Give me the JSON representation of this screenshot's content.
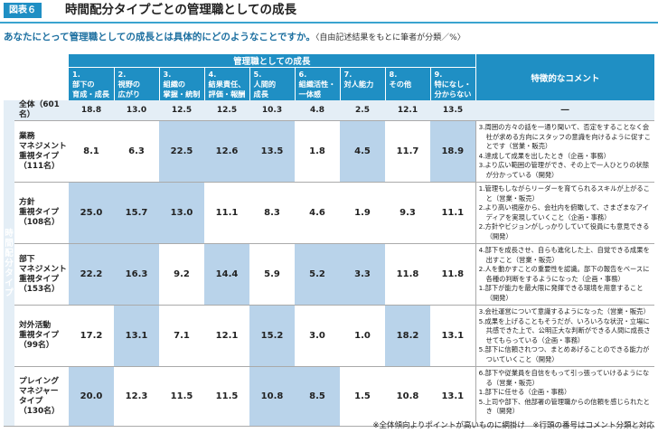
{
  "figure_label": "図表６",
  "title": "時間配分タイプごとの管理職としての成長",
  "question": "あなたにとって管理職としての成長とは具体的にどのようなことですか。",
  "question_note": "〈自由記述結果をもとに筆者が分類／%〉",
  "group_header": "管理職としての成長",
  "comment_header": "特徴的なコメント",
  "side_label": "時間配分タイプ",
  "columns": [
    "1.部下の育成・成長",
    "2.視野の広がり",
    "3.組織の掌握・統制",
    "4.結果責任、評価・報酬",
    "5.人間的成長",
    "6.組織活性・一体感",
    "7.対人能力",
    "8.その他",
    "9.特になし・分からない"
  ],
  "col_lines": [
    [
      "1.",
      "部下の",
      "育成・成長"
    ],
    [
      "2.",
      "視野の",
      "広がり"
    ],
    [
      "3.",
      "組織の",
      "掌握・統制"
    ],
    [
      "4.",
      "結果責任、",
      "評価・報酬"
    ],
    [
      "5.",
      "人間的",
      "成長"
    ],
    [
      "6.",
      "組織活性・",
      "一体感"
    ],
    [
      "7.",
      "対人能力"
    ],
    [
      "8.",
      "その他"
    ],
    [
      "9.",
      "特になし・",
      "分からない"
    ]
  ],
  "all_row": {
    "label": "全体（601名）",
    "values": [
      "18.8",
      "13.0",
      "12.5",
      "12.5",
      "10.3",
      "4.8",
      "2.5",
      "12.1",
      "13.5"
    ],
    "comment": "―"
  },
  "rows": [
    {
      "label_lines": [
        "業務",
        "マネジメント",
        "重視タイプ",
        "（111名）"
      ],
      "values": [
        "8.1",
        "6.3",
        "22.5",
        "12.6",
        "13.5",
        "1.8",
        "4.5",
        "11.7",
        "18.9"
      ],
      "highlight": [
        false,
        false,
        true,
        true,
        true,
        false,
        true,
        false,
        true
      ],
      "comments": [
        "3.周囲の方々の話を一通り聞いて、否定をすることなく会社が求める方向にスタッフの意識を向けるように促すことです（営業・販売）",
        "4.達成して成果を出したとき（企画・事務）",
        "3.より広い範囲の管理ができ、その上で一人ひとりの状態が分かっている（開発）"
      ]
    },
    {
      "label_lines": [
        "方針",
        "重視タイプ",
        "（108名）"
      ],
      "values": [
        "25.0",
        "15.7",
        "13.0",
        "11.1",
        "8.3",
        "4.6",
        "1.9",
        "9.3",
        "11.1"
      ],
      "highlight": [
        true,
        true,
        true,
        false,
        false,
        false,
        false,
        false,
        false
      ],
      "comments": [
        "1.管理もしながらリーダーを育てられるスキルが上がること（営業・販売）",
        "2.より高い視座から、会社内を俯瞰して、さまざまなアイディアを実現していくこと（企画・事務）",
        "2.方針やビジョンがしっかりしていて役員にも意見できる（開発）"
      ]
    },
    {
      "label_lines": [
        "部下",
        "マネジメント",
        "重視タイプ",
        "（153名）"
      ],
      "values": [
        "22.2",
        "16.3",
        "9.2",
        "14.4",
        "5.9",
        "5.2",
        "3.3",
        "11.8",
        "11.8"
      ],
      "highlight": [
        true,
        true,
        false,
        true,
        false,
        true,
        true,
        false,
        false
      ],
      "comments": [
        "4.部下を成長させ、自らも進化した上、自覚できる成果を出すこと（営業・販売）",
        "2.人を動かすことの重要性を認識。部下の報告をベースに各種の判断をするようになった（企画・事務）",
        "1.部下が能力を最大限に発揮できる環境を用意すること（開発）"
      ]
    },
    {
      "label_lines": [
        "対外活動",
        "重視タイプ",
        "（99名）"
      ],
      "values": [
        "17.2",
        "13.1",
        "7.1",
        "12.1",
        "15.2",
        "3.0",
        "1.0",
        "18.2",
        "13.1"
      ],
      "highlight": [
        false,
        true,
        false,
        false,
        true,
        false,
        false,
        true,
        false
      ],
      "comments": [
        "3.会社運営について意識するようになった（営業・販売）",
        "5.成果を上げることもそうだが、いろいろな状況・立場に共感できた上で、公明正大な判断ができる人間に成長させてもらっている（企画・事務）",
        "5.部下に信頼されつつ、まとめあげることのできる能力がついていくこと（開発）"
      ]
    },
    {
      "label_lines": [
        "プレイング",
        "マネジャー",
        "タイプ",
        "（130名）"
      ],
      "values": [
        "20.0",
        "12.3",
        "11.5",
        "11.5",
        "10.8",
        "8.5",
        "1.5",
        "10.8",
        "13.1"
      ],
      "highlight": [
        true,
        false,
        false,
        false,
        true,
        true,
        false,
        false,
        false
      ],
      "comments": [
        "6.部下や従業員を自信をもって引っ張っていけるようになる（営業・販売）",
        "1.部下に任せる（企画・事務）",
        "5.上司や部下、他部署の管理職からの信頼を感じられたとき（開発）"
      ]
    }
  ],
  "footnote": "※全体傾向よりポイントが高いものに網掛け　※行頭の番号はコメント分類と対応",
  "colors": {
    "accent": "#1f8fc4",
    "highlight": "#b9d3ea",
    "all_row_bg": "#e4eef6"
  }
}
